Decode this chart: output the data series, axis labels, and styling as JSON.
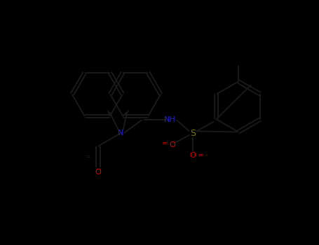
{
  "bg": "#000000",
  "bond_color": "#1a1a1a",
  "lc": "#1a1a1a",
  "Nc": "#2222cc",
  "Oc": "#dd0000",
  "Sc": "#7a7a00",
  "lw": 1.4,
  "fig_w": 4.55,
  "fig_h": 3.5,
  "dpi": 100,
  "xlim": [
    0,
    9.1
  ],
  "ylim": [
    0,
    7.0
  ]
}
